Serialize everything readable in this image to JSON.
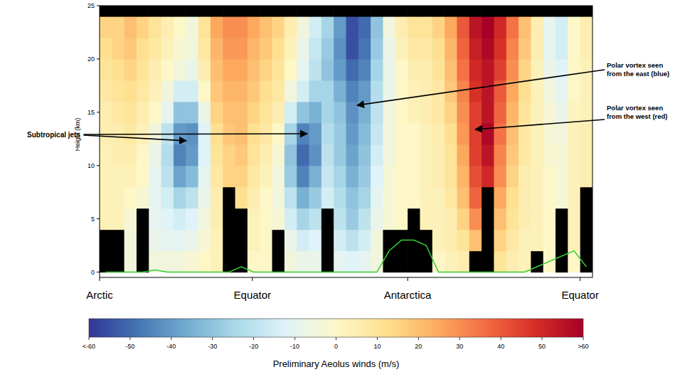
{
  "chart_data": {
    "type": "heatmap",
    "y_label": "Height (km)",
    "xlim": [
      0,
      100
    ],
    "xticks": [
      {
        "value": 0,
        "label": "Arctic"
      },
      {
        "value": 31,
        "label": "Equator"
      },
      {
        "value": 62.5,
        "label": "Antarctica"
      },
      {
        "value": 97.5,
        "label": "Equator"
      }
    ],
    "ylim": [
      -0.5,
      25
    ],
    "yticks": [
      0,
      5,
      10,
      15,
      20,
      25
    ],
    "grid": false,
    "x_edges": [
      0,
      2.5,
      5,
      7.5,
      10,
      12.5,
      15,
      17.5,
      20,
      22.5,
      25,
      27.5,
      30,
      32.5,
      35,
      37.5,
      40,
      42.5,
      45,
      47.5,
      50,
      52.5,
      55,
      57.5,
      60,
      62.5,
      65,
      67.5,
      70,
      72.5,
      75,
      77.5,
      80,
      82.5,
      85,
      87.5,
      90,
      92.5,
      95,
      97.5,
      100
    ],
    "y_edges": [
      0,
      2,
      4,
      6,
      8,
      10,
      12,
      14,
      16,
      18,
      20,
      22,
      24,
      25
    ],
    "cells": [
      [
        null,
        null,
        -5,
        null,
        -5,
        -5,
        -5,
        -3,
        0,
        3,
        null,
        null,
        0,
        0,
        null,
        -5,
        -8,
        -8,
        null,
        -10,
        -12,
        -10,
        -5,
        null,
        null,
        null,
        null,
        0,
        3,
        5,
        null,
        null,
        10,
        5,
        3,
        null,
        0,
        null,
        0,
        null
      ],
      [
        null,
        null,
        -5,
        null,
        -8,
        -10,
        -10,
        -8,
        -3,
        3,
        null,
        null,
        3,
        0,
        null,
        -8,
        -15,
        -12,
        null,
        -15,
        -20,
        -15,
        -5,
        null,
        null,
        null,
        null,
        3,
        5,
        10,
        20,
        null,
        15,
        8,
        3,
        3,
        0,
        null,
        3,
        null
      ],
      [
        3,
        3,
        -3,
        null,
        -10,
        -12,
        -15,
        -12,
        -5,
        5,
        null,
        null,
        3,
        0,
        -3,
        -15,
        -25,
        -20,
        null,
        -20,
        -28,
        -20,
        -8,
        -3,
        0,
        null,
        3,
        3,
        5,
        15,
        30,
        null,
        20,
        10,
        5,
        3,
        0,
        null,
        3,
        null
      ],
      [
        3,
        3,
        0,
        -3,
        -10,
        -15,
        -25,
        -20,
        -8,
        5,
        null,
        12,
        5,
        0,
        -5,
        -20,
        -35,
        -28,
        -15,
        -22,
        -30,
        -25,
        -10,
        -3,
        0,
        0,
        3,
        3,
        8,
        20,
        38,
        null,
        25,
        12,
        5,
        3,
        0,
        -3,
        3,
        null
      ],
      [
        3,
        3,
        3,
        0,
        -10,
        -20,
        -38,
        -32,
        -10,
        8,
        15,
        15,
        8,
        3,
        -5,
        -28,
        -45,
        -35,
        -18,
        -25,
        -35,
        -28,
        -12,
        -3,
        0,
        0,
        3,
        5,
        10,
        22,
        42,
        50,
        30,
        15,
        5,
        3,
        0,
        -3,
        3,
        5
      ],
      [
        3,
        5,
        5,
        0,
        -8,
        -22,
        -45,
        -40,
        -12,
        10,
        15,
        18,
        10,
        5,
        -3,
        -30,
        -50,
        -42,
        -20,
        -28,
        -38,
        -30,
        -15,
        -5,
        0,
        0,
        3,
        5,
        10,
        25,
        45,
        55,
        32,
        18,
        8,
        3,
        -2,
        -3,
        3,
        5
      ],
      [
        5,
        5,
        8,
        3,
        -5,
        -20,
        -40,
        -42,
        -12,
        12,
        18,
        20,
        12,
        8,
        0,
        -25,
        -45,
        -40,
        -22,
        -28,
        -40,
        -32,
        -18,
        -5,
        0,
        0,
        3,
        5,
        12,
        28,
        45,
        58,
        35,
        20,
        8,
        3,
        -3,
        -5,
        3,
        5
      ],
      [
        5,
        8,
        10,
        5,
        0,
        -10,
        -30,
        -30,
        -8,
        15,
        20,
        20,
        15,
        10,
        5,
        -15,
        -30,
        -35,
        -25,
        -30,
        -42,
        -35,
        -20,
        -5,
        0,
        3,
        5,
        8,
        15,
        30,
        45,
        55,
        38,
        22,
        10,
        3,
        -3,
        -8,
        2,
        3
      ],
      [
        8,
        10,
        12,
        8,
        3,
        -5,
        -15,
        -15,
        0,
        18,
        22,
        22,
        18,
        12,
        8,
        -5,
        -15,
        -25,
        -25,
        -35,
        -45,
        -40,
        -22,
        -8,
        0,
        3,
        5,
        8,
        18,
        32,
        48,
        55,
        40,
        25,
        12,
        3,
        -5,
        -10,
        0,
        3
      ],
      [
        10,
        12,
        15,
        10,
        5,
        0,
        -5,
        -8,
        5,
        20,
        25,
        25,
        20,
        15,
        10,
        0,
        -10,
        -20,
        -30,
        -40,
        -50,
        -45,
        -25,
        -8,
        0,
        5,
        5,
        10,
        20,
        35,
        50,
        55,
        45,
        30,
        15,
        3,
        -8,
        -12,
        0,
        3
      ],
      [
        12,
        15,
        18,
        12,
        8,
        3,
        -2,
        -5,
        8,
        22,
        28,
        28,
        22,
        18,
        12,
        3,
        -8,
        -18,
        -28,
        -42,
        -55,
        -48,
        -28,
        -8,
        3,
        8,
        8,
        12,
        22,
        38,
        52,
        58,
        48,
        32,
        18,
        5,
        -10,
        -15,
        0,
        5
      ],
      [
        15,
        15,
        20,
        15,
        10,
        5,
        0,
        -5,
        10,
        25,
        30,
        30,
        25,
        20,
        15,
        5,
        -5,
        -15,
        -25,
        -40,
        -55,
        -50,
        -30,
        -5,
        5,
        10,
        10,
        15,
        25,
        40,
        55,
        60,
        50,
        35,
        20,
        5,
        -10,
        -15,
        0,
        5
      ],
      [
        null,
        null,
        null,
        null,
        null,
        null,
        null,
        null,
        null,
        null,
        null,
        null,
        null,
        null,
        null,
        null,
        null,
        null,
        null,
        null,
        null,
        null,
        null,
        null,
        null,
        null,
        null,
        null,
        null,
        null,
        null,
        null,
        null,
        null,
        null,
        null,
        null,
        null,
        null,
        null
      ]
    ],
    "series": [
      {
        "type": "line",
        "color": "#33cc33",
        "x": [
          1.25,
          3.75,
          6.25,
          8.75,
          11.25,
          13.75,
          16.25,
          18.75,
          21.25,
          23.75,
          26.25,
          28.75,
          31.25,
          33.75,
          36.25,
          38.75,
          41.25,
          43.75,
          46.25,
          48.75,
          51.25,
          53.75,
          56.25,
          58.75,
          61.25,
          63.75,
          66.25,
          68.75,
          71.25,
          73.75,
          76.25,
          78.75,
          81.25,
          83.75,
          86.25,
          88.75,
          91.25,
          93.75,
          96.25,
          98.75
        ],
        "values": [
          0,
          0,
          0,
          0,
          0.2,
          0,
          0,
          0,
          0,
          0,
          0,
          0.5,
          0,
          0,
          0,
          0,
          0,
          0,
          0,
          0,
          0,
          0,
          0,
          2,
          3,
          3,
          2.5,
          0,
          0,
          0,
          0,
          0,
          0,
          0,
          0,
          0.5,
          1,
          1.5,
          2,
          0.5
        ]
      }
    ],
    "colorbar": {
      "label": "Preliminary Aeolus winds (m/s)",
      "range": [
        -60,
        60
      ],
      "ticks": [
        {
          "value": -60,
          "label": "<-60"
        },
        -50,
        -40,
        -30,
        -20,
        -10,
        0,
        10,
        20,
        30,
        40,
        50,
        {
          "value": 60,
          "label": ">60"
        }
      ]
    },
    "annotations": [
      {
        "text": "Subtropical jets"
      },
      {
        "text": "Polar vortex seen from the east (blue)"
      },
      {
        "text": "Polar vortex seen from the west (red)"
      }
    ]
  }
}
